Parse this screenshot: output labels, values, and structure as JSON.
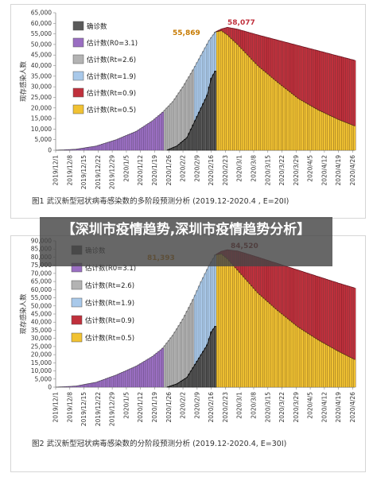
{
  "overlay_text": "【深圳市疫情趋势,深圳市疫情趋势分析】",
  "chart_data": [
    {
      "type": "bar",
      "ylabel": "现存感染人数",
      "ylim": [
        0,
        65000
      ],
      "yticks": [
        "0",
        "5,000",
        "10,000",
        "15,000",
        "20,000",
        "25,000",
        "30,000",
        "35,000",
        "40,000",
        "45,000",
        "50,000",
        "55,000",
        "60,000",
        "65,000"
      ],
      "categories": [
        "2019/12/1",
        "2019/12/8",
        "2019/12/15",
        "2019/12/22",
        "2019/12/29",
        "2020/1/5",
        "2020/1/12",
        "2020/1/19",
        "2020/1/26",
        "2020/2/2",
        "2020/2/9",
        "2020/2/16",
        "2020/2/23",
        "2020/3/1",
        "2020/3/8",
        "2020/3/15",
        "2020/3/22",
        "2020/3/29",
        "2020/4/5",
        "2020/4/12",
        "2020/4/19",
        "2020/4/26"
      ],
      "legend": [
        "确诊数",
        "估计数(R0=3.1)",
        "估计数(Rt=2.6)",
        "估计数(Rt=1.9)",
        "估计数(Rt=0.9)",
        "估计数(Rt=0.5)"
      ],
      "colors": [
        "#5a5a5a",
        "#9a6ec2",
        "#b3b3b3",
        "#a9c9ea",
        "#c0303c",
        "#f1c232"
      ],
      "series": [
        {
          "name": "确诊数",
          "x": [
            55,
            60,
            65,
            70,
            75,
            77,
            79
          ],
          "values": [
            0,
            2000,
            6000,
            16000,
            26000,
            34000,
            37500
          ]
        },
        {
          "name": "估计数(R0=3.1)",
          "x": [
            0,
            10,
            20,
            30,
            40,
            48,
            53
          ],
          "values": [
            0,
            500,
            2000,
            5000,
            9000,
            14000,
            18000
          ]
        },
        {
          "name": "估计数(Rt=2.6)",
          "x": [
            53,
            58,
            63,
            68
          ],
          "values": [
            18000,
            23000,
            30000,
            38000
          ]
        },
        {
          "name": "估计数(Rt=1.9)",
          "x": [
            68,
            72,
            76,
            79
          ],
          "values": [
            38000,
            45000,
            52000,
            55869
          ]
        },
        {
          "name": "估计数(Rt=0.9)",
          "x": [
            79,
            82,
            85,
            90,
            100,
            120,
            140,
            148
          ],
          "values": [
            55869,
            57300,
            58077,
            57200,
            54500,
            49500,
            44500,
            42500
          ]
        },
        {
          "name": "估计数(Rt=0.5)",
          "x": [
            79,
            82,
            85,
            90,
            100,
            110,
            120,
            130,
            140,
            148
          ],
          "values": [
            55869,
            56500,
            54500,
            50000,
            40000,
            32000,
            24500,
            19000,
            14500,
            11500
          ]
        }
      ],
      "annotations": [
        "55,869",
        "58,077"
      ],
      "caption": "图1  武汉新型冠状病毒感染数的多阶段预测分析  (2019.12-2020.4 ,  E=20I)"
    },
    {
      "type": "bar",
      "ylabel": "现存感染人数",
      "ylim": [
        0,
        90000
      ],
      "yticks": [
        "0",
        "5,000",
        "10,000",
        "15,000",
        "20,000",
        "25,000",
        "30,000",
        "35,000",
        "40,000",
        "45,000",
        "50,000",
        "55,000",
        "60,000",
        "65,000",
        "70,000",
        "75,000",
        "80,000",
        "85,000",
        "90,000"
      ],
      "categories": [
        "2019/12/1",
        "2019/12/8",
        "2019/12/15",
        "2019/12/22",
        "2019/12/29",
        "2020/1/5",
        "2020/1/12",
        "2020/1/19",
        "2020/1/26",
        "2020/2/2",
        "2020/2/9",
        "2020/2/16",
        "2020/2/23",
        "2020/3/1",
        "2020/3/8",
        "2020/3/15",
        "2020/3/22",
        "2020/3/29",
        "2020/4/5",
        "2020/4/12",
        "2020/4/19",
        "2020/4/26"
      ],
      "legend": [
        "确诊数",
        "估计数(R0=3.1)",
        "估计数(Rt=2.6)",
        "估计数(Rt=1.9)",
        "估计数(Rt=0.9)",
        "估计数(Rt=0.5)"
      ],
      "colors": [
        "#5a5a5a",
        "#9a6ec2",
        "#b3b3b3",
        "#a9c9ea",
        "#c0303c",
        "#f1c232"
      ],
      "series": [
        {
          "name": "确诊数",
          "x": [
            55,
            60,
            65,
            70,
            75,
            77,
            79
          ],
          "values": [
            0,
            2000,
            6000,
            16000,
            26000,
            34000,
            37500
          ]
        },
        {
          "name": "估计数(R0=3.1)",
          "x": [
            0,
            10,
            20,
            30,
            40,
            48,
            53
          ],
          "values": [
            0,
            700,
            3000,
            7500,
            13000,
            19000,
            24000
          ]
        },
        {
          "name": "估计数(Rt=2.6)",
          "x": [
            53,
            58,
            63,
            68
          ],
          "values": [
            24000,
            32000,
            42000,
            54000
          ]
        },
        {
          "name": "估计数(Rt=1.9)",
          "x": [
            68,
            72,
            76,
            79
          ],
          "values": [
            54000,
            65000,
            75000,
            81393
          ]
        },
        {
          "name": "估计数(Rt=0.9)",
          "x": [
            79,
            82,
            85,
            90,
            100,
            120,
            140,
            148
          ],
          "values": [
            81393,
            83600,
            84520,
            83800,
            80000,
            72000,
            64000,
            61000
          ]
        },
        {
          "name": "估计数(Rt=0.5)",
          "x": [
            79,
            82,
            85,
            90,
            100,
            110,
            120,
            130,
            140,
            148
          ],
          "values": [
            81393,
            82000,
            79000,
            72000,
            58000,
            47000,
            37000,
            29000,
            22000,
            17000
          ]
        }
      ],
      "annotations": [
        "81,393",
        "84,520"
      ],
      "caption": "图2  武汉新型冠状病毒感染数的分阶段预测分析  (2019.12-2020.4,  E=30I)"
    }
  ]
}
